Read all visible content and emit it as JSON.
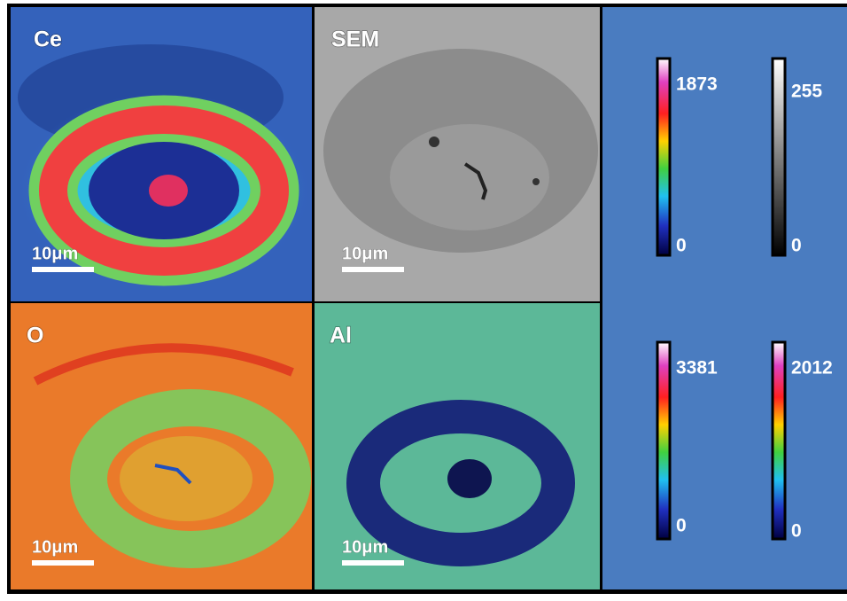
{
  "panels": [
    {
      "label": "Ce",
      "scale_bar": "10μm"
    },
    {
      "label": "SEM",
      "scale_bar": "10μm"
    },
    {
      "label": "O",
      "scale_bar": "10μm"
    },
    {
      "label": "Al",
      "scale_bar": "10μm"
    }
  ],
  "colorbars": [
    {
      "max": 1873,
      "min": 0
    },
    {
      "max": 255,
      "min": 0
    },
    {
      "max": 3381,
      "min": 0
    },
    {
      "max": 2012,
      "min": 0
    }
  ]
}
